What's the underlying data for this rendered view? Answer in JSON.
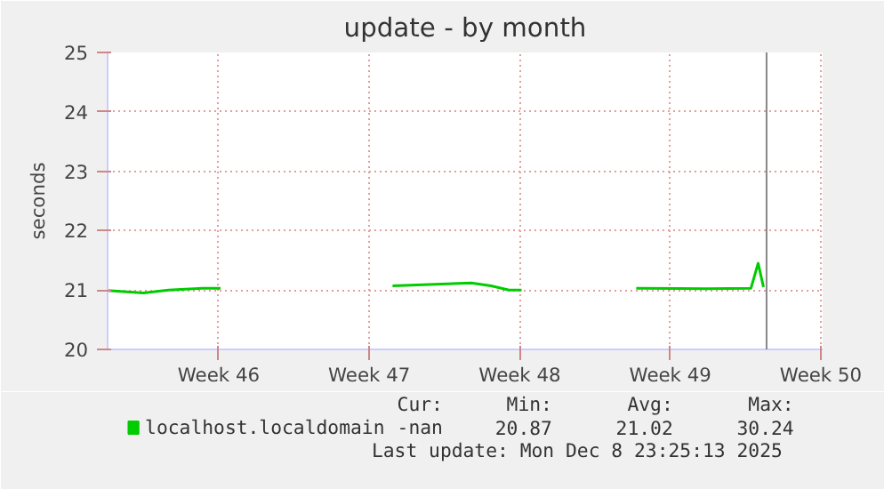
{
  "chart_data": {
    "type": "line",
    "title": "update - by month",
    "ylabel": "seconds",
    "x": [
      "2025-11-08T08:00",
      "2025-11-10T00:00",
      "2025-11-11T04:00",
      "2025-11-12T18:00",
      "2025-11-13T14:00",
      "2025-11-15T00:00",
      "2025-11-21T14:00",
      "2025-11-25T06:00",
      "2025-11-26T04:00",
      "2025-11-27T00:00",
      "2025-11-27T14:00",
      "2025-11-30T00:00",
      "2025-12-02T22:00",
      "2025-12-06T04:00",
      "2025-12-08T06:00",
      "2025-12-08T14:00",
      "2025-12-08T20:00"
    ],
    "series": [
      {
        "name": "localhost.localdomain",
        "color": "#00cc00",
        "values": [
          20.99,
          20.95,
          21.0,
          21.03,
          21.03,
          null,
          21.07,
          21.12,
          21.07,
          21.0,
          21.0,
          null,
          21.03,
          21.02,
          21.03,
          21.45,
          21.05
        ]
      }
    ],
    "xlim": [
      "2025-11-08T08:00",
      "2025-12-11T14:00"
    ],
    "xticks": [
      {
        "value": "2025-11-13T12:00",
        "label": "Week 46"
      },
      {
        "value": "2025-11-20T12:00",
        "label": "Week 47"
      },
      {
        "value": "2025-11-27T12:00",
        "label": "Week 48"
      },
      {
        "value": "2025-12-04T12:00",
        "label": "Week 49"
      },
      {
        "value": "2025-12-11T12:00",
        "label": "Week 50"
      }
    ],
    "ylim": [
      20,
      25
    ],
    "yticks": [
      20,
      21,
      22,
      23,
      24,
      25
    ],
    "ref_lines": [
      {
        "axis": "x",
        "value": "2025-12-08T23:25",
        "color": "#888888"
      }
    ],
    "grid": true,
    "legend": "bottom left",
    "line_style": "solid",
    "marker": "none",
    "annotations": [
      "Cur:",
      "-nan",
      "Min:",
      "20.87",
      "Avg:",
      "21.02",
      "Max:",
      "30.24",
      "Last update: Mon Dec  8 23:25:13 2025"
    ]
  }
}
